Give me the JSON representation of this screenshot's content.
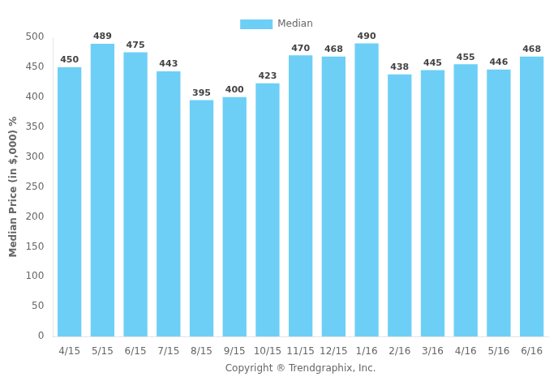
{
  "chart_data": {
    "type": "bar",
    "categories": [
      "4/15",
      "5/15",
      "6/15",
      "7/15",
      "8/15",
      "9/15",
      "10/15",
      "11/15",
      "12/15",
      "1/16",
      "2/16",
      "3/16",
      "4/16",
      "5/16",
      "6/16"
    ],
    "series": [
      {
        "name": "Median",
        "color": "#6DCFF6",
        "values": [
          450,
          489,
          475,
          443,
          395,
          400,
          423,
          470,
          468,
          490,
          438,
          445,
          455,
          446,
          468
        ]
      }
    ],
    "ylabel": "Median Price (in $,000) %",
    "xlabel": "Copyright ® Trendgraphix, Inc.",
    "ylim": [
      0,
      500
    ],
    "yticks": [
      0,
      50,
      100,
      150,
      200,
      250,
      300,
      350,
      400,
      450,
      500
    ],
    "grid": false,
    "legend": "top",
    "data_labels": true
  }
}
